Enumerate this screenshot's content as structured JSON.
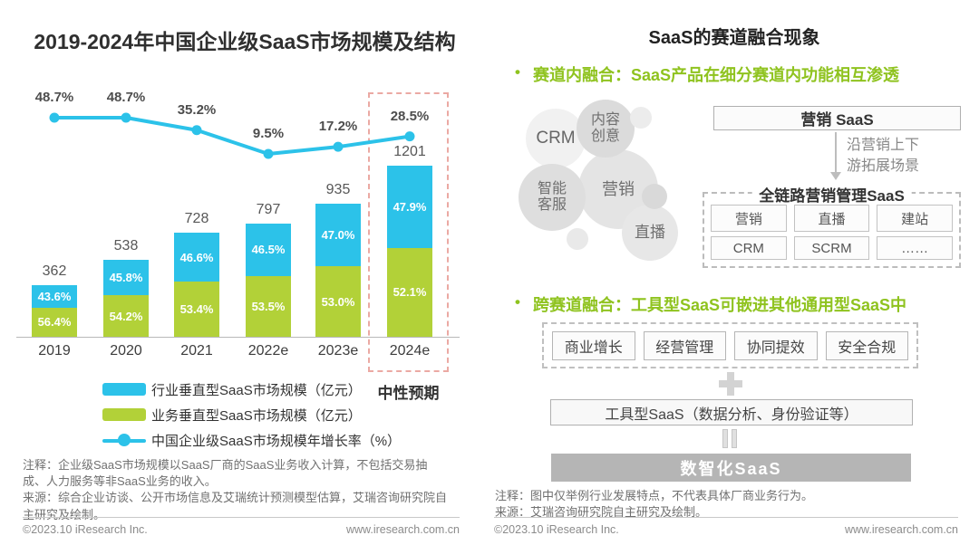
{
  "chart_data": {
    "type": "bar-stacked+line",
    "title": "2019-2024年中国企业级SaaS市场规模及结构",
    "categories": [
      "2019",
      "2020",
      "2021",
      "2022e",
      "2023e",
      "2024e"
    ],
    "totals": [
      362,
      538,
      728,
      797,
      935,
      1201
    ],
    "unit": "亿元",
    "series": [
      {
        "name": "行业垂直型SaaS市场规模（亿元）",
        "stack": "top",
        "color": "#2cc2e9",
        "share_pct": [
          43.6,
          45.8,
          46.6,
          46.5,
          47.0,
          47.9
        ]
      },
      {
        "name": "业务垂直型SaaS市场规模（亿元）",
        "stack": "bottom",
        "color": "#b2d138",
        "share_pct": [
          56.4,
          54.2,
          53.4,
          53.5,
          53.0,
          52.1
        ]
      }
    ],
    "line_series": {
      "name": "中国企业级SaaS市场规模年增长率（%）",
      "color": "#2cc2e9",
      "values": [
        48.7,
        48.7,
        35.2,
        9.5,
        17.2,
        28.5
      ]
    },
    "highlight": {
      "category": "2024e",
      "label": "中性预期",
      "box_color": "#eba9a3"
    },
    "legend_position": "bottom",
    "grid": false
  },
  "left_panel": {
    "notes": [
      "注释：企业级SaaS市场规模以SaaS厂商的SaaS业务收入计算，不包括交易抽成、人力服务等非SaaS业务的收入。",
      "来源：综合企业访谈、公开市场信息及艾瑞统计预测模型估算，艾瑞咨询研究院自主研究及绘制。"
    ],
    "footer": {
      "copyright": "©2023.10 iResearch Inc.",
      "website": "www.iresearch.com.cn"
    }
  },
  "right_panel": {
    "title": "SaaS的赛道融合现象",
    "accent_color": "#8fc31f",
    "bullet1": "赛道内融合：SaaS产品在细分赛道内功能相互渗透",
    "bullet2": "跨赛道融合：工具型SaaS可嵌进其他通用型SaaS中",
    "bubbles": [
      {
        "label": "营销"
      },
      {
        "label": "CRM"
      },
      {
        "label": "内容创意"
      },
      {
        "label": "智能客服"
      },
      {
        "label": "直播"
      }
    ],
    "marketing_box": "营销 SaaS",
    "arrow_note_lines": [
      "沿营销上下",
      "游拓展场景"
    ],
    "full_chain": {
      "title": "全链路营销管理SaaS",
      "items": [
        "营销",
        "直播",
        "建站",
        "CRM",
        "SCRM",
        "……"
      ]
    },
    "general_boxes": [
      "商业增长",
      "经营管理",
      "协同提效",
      "安全合规"
    ],
    "tool_box": "工具型SaaS（数据分析、身份验证等）",
    "result_box": "数智化SaaS",
    "result_box_color": "#b5b5b5",
    "notes": [
      "注释：图中仅举例行业发展特点，不代表具体厂商业务行为。",
      "来源：艾瑞咨询研究院自主研究及绘制。"
    ],
    "footer": {
      "copyright": "©2023.10 iResearch Inc.",
      "website": "www.iresearch.com.cn"
    }
  }
}
